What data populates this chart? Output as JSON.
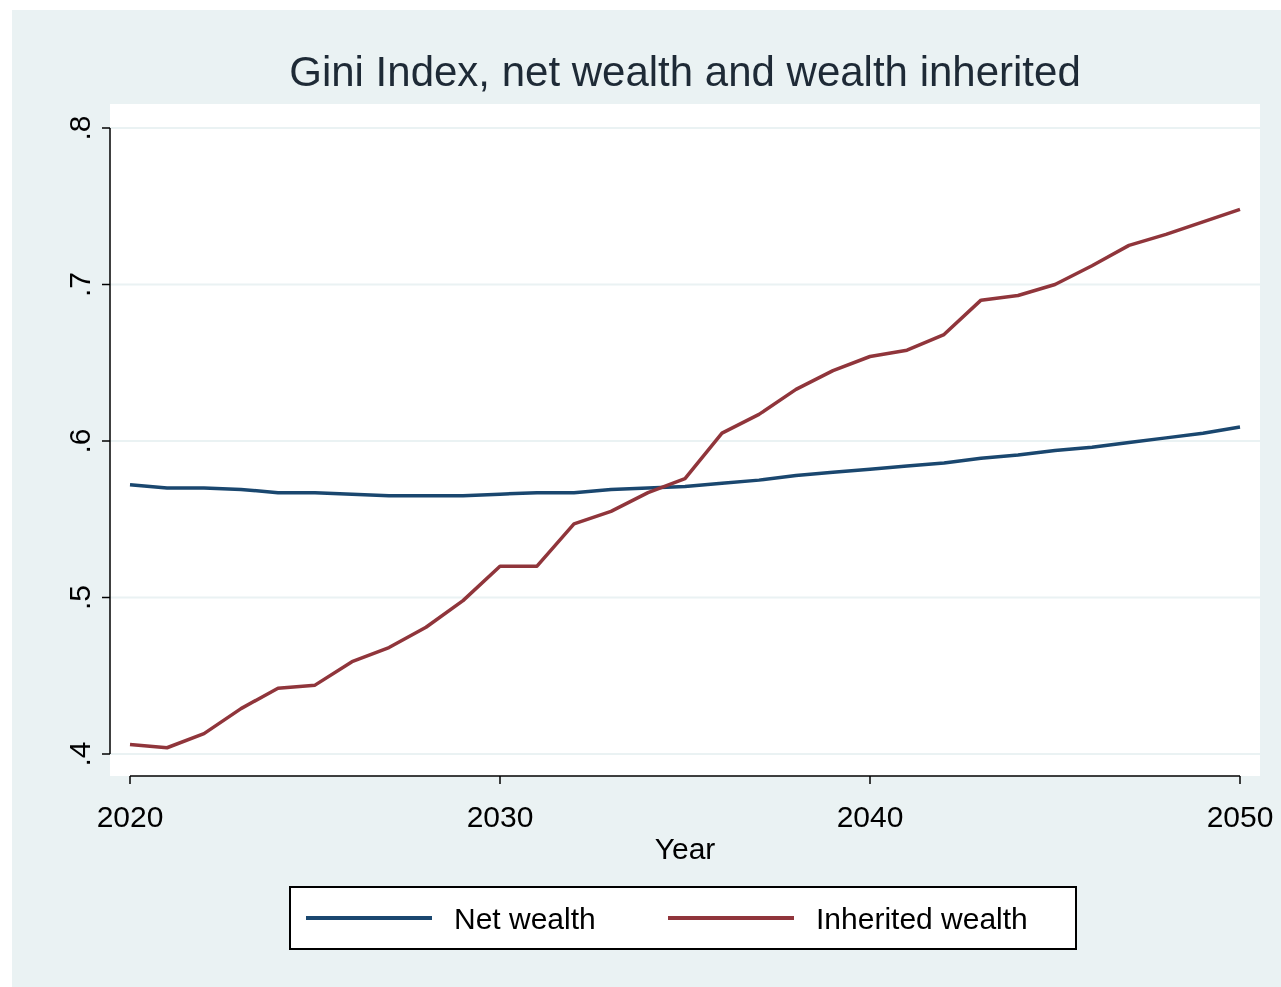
{
  "chart_data": {
    "type": "line",
    "title": "Gini Index, net wealth and wealth inherited",
    "xlabel": "Year",
    "x": [
      2020,
      2021,
      2022,
      2023,
      2024,
      2025,
      2026,
      2027,
      2028,
      2029,
      2030,
      2031,
      2032,
      2033,
      2034,
      2035,
      2036,
      2037,
      2038,
      2039,
      2040,
      2041,
      2042,
      2043,
      2044,
      2045,
      2046,
      2047,
      2048,
      2049,
      2050
    ],
    "series": [
      {
        "name": "Net wealth",
        "color": "#1a476f",
        "values": [
          0.572,
          0.57,
          0.57,
          0.569,
          0.567,
          0.567,
          0.566,
          0.565,
          0.565,
          0.565,
          0.566,
          0.567,
          0.567,
          0.569,
          0.57,
          0.571,
          0.573,
          0.575,
          0.578,
          0.58,
          0.582,
          0.584,
          0.586,
          0.589,
          0.591,
          0.594,
          0.596,
          0.599,
          0.602,
          0.605,
          0.609
        ]
      },
      {
        "name": "Inherited wealth",
        "color": "#90353b",
        "values": [
          0.406,
          0.404,
          0.413,
          0.429,
          0.442,
          0.444,
          0.459,
          0.468,
          0.481,
          0.498,
          0.52,
          0.52,
          0.547,
          0.555,
          0.567,
          0.576,
          0.605,
          0.617,
          0.633,
          0.645,
          0.654,
          0.658,
          0.668,
          0.69,
          0.693,
          0.7,
          0.712,
          0.725,
          0.732,
          0.74,
          0.748
        ]
      }
    ],
    "xlim": [
      2020,
      2050
    ],
    "xticks": [
      2020,
      2030,
      2040,
      2050
    ],
    "ylim": [
      0.4,
      0.8
    ],
    "yticks": [
      {
        "value": 0.4,
        "label": ".4"
      },
      {
        "value": 0.5,
        "label": ".5"
      },
      {
        "value": 0.6,
        "label": ".6"
      },
      {
        "value": 0.7,
        "label": ".7"
      },
      {
        "value": 0.8,
        "label": ".8"
      }
    ],
    "grid": "y",
    "legend": "bottom",
    "line_style": "solid",
    "marker": "none"
  }
}
